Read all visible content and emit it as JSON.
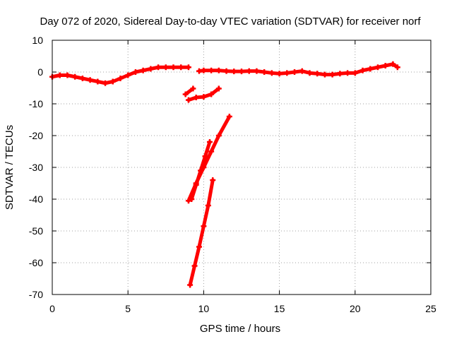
{
  "chart_data": {
    "type": "scatter",
    "title": "Day 072 of 2020, Sidereal Day-to-day VTEC variation (SDTVAR) for receiver norf",
    "xlabel": "GPS time / hours",
    "ylabel": "SDTVAR / TECUs",
    "xlim": [
      0,
      25
    ],
    "ylim": [
      -70,
      10
    ],
    "xticks": [
      0,
      5,
      10,
      15,
      20,
      25
    ],
    "yticks": [
      10,
      0,
      -10,
      -20,
      -30,
      -40,
      -50,
      -60,
      -70
    ],
    "grid": true,
    "marker": "+",
    "colors": {
      "series": "#ff0000",
      "grid": "#a0a0a0",
      "axis": "#000000"
    },
    "series": [
      {
        "segments": [
          {
            "x": [
              0.0,
              0.5,
              1.0,
              1.5,
              2.0,
              2.5,
              3.0,
              3.5,
              4.0,
              4.5,
              5.0,
              5.5,
              6.0,
              6.5,
              7.0,
              7.5,
              8.0,
              8.5,
              9.0
            ],
            "y": [
              -1.5,
              -1.0,
              -1.0,
              -1.5,
              -2.0,
              -2.5,
              -3.0,
              -3.5,
              -3.0,
              -2.0,
              -1.0,
              0.0,
              0.5,
              1.0,
              1.5,
              1.5,
              1.5,
              1.5,
              1.5
            ]
          },
          {
            "x": [
              9.7,
              10.0,
              10.5,
              11.0,
              11.5,
              12.0,
              12.5,
              13.0,
              13.5,
              14.0,
              14.5,
              15.0,
              15.5,
              16.0,
              16.5,
              17.0,
              17.5,
              18.0,
              18.5,
              19.0,
              19.5,
              20.0,
              20.5,
              21.0,
              21.5,
              22.0,
              22.5,
              22.8
            ],
            "y": [
              0.3,
              0.5,
              0.5,
              0.5,
              0.3,
              0.2,
              0.2,
              0.3,
              0.3,
              0.0,
              -0.3,
              -0.5,
              -0.3,
              0.0,
              0.3,
              -0.3,
              -0.5,
              -0.8,
              -0.8,
              -0.5,
              -0.3,
              -0.3,
              0.5,
              1.0,
              1.5,
              2.0,
              2.5,
              1.5
            ]
          },
          {
            "x": [
              8.8,
              9.3
            ],
            "y": [
              -7.0,
              -5.2
            ]
          },
          {
            "x": [
              9.0,
              9.5,
              10.0,
              10.5,
              11.0
            ],
            "y": [
              -8.8,
              -8.0,
              -7.8,
              -7.0,
              -5.2
            ]
          },
          {
            "x": [
              9.0,
              9.5,
              10.0,
              10.5,
              11.0,
              11.7
            ],
            "y": [
              -40.5,
              -35.0,
              -30.0,
              -25.0,
              -20.0,
              -14.0
            ]
          },
          {
            "x": [
              9.2,
              9.5,
              9.8,
              10.1,
              10.4
            ],
            "y": [
              -40.0,
              -35.5,
              -31.0,
              -26.5,
              -22.0
            ]
          },
          {
            "x": [
              9.1,
              9.4,
              9.7,
              10.0,
              10.3,
              10.6
            ],
            "y": [
              -67.0,
              -61.0,
              -55.0,
              -48.5,
              -42.0,
              -34.0
            ]
          }
        ]
      }
    ]
  }
}
